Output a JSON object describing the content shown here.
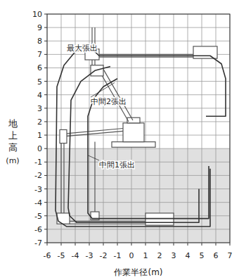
{
  "chart_data": {
    "type": "line",
    "x_label": "作業半径(m)",
    "y_label": "地上高(m)",
    "xlim": [
      -6,
      7
    ],
    "ylim": [
      -7,
      10
    ],
    "xticks": [
      -6,
      -5,
      -4,
      -3,
      -2,
      -1,
      0,
      1,
      2,
      3,
      4,
      5,
      6,
      7
    ],
    "yticks": [
      -7,
      -6,
      -5,
      -4,
      -3,
      -2,
      -1,
      0,
      1,
      2,
      3,
      4,
      5,
      6,
      7,
      8,
      9,
      10
    ],
    "grid": true,
    "regions": [
      {
        "y0": -7,
        "y1": 0,
        "color": "#e0e0e0"
      }
    ],
    "series": [
      {
        "color": "#333333",
        "x": [
          5.3,
          6.7,
          6.7,
          6.4,
          5.6,
          -2.3,
          -3.0,
          -4.0,
          -4.8,
          -5.3,
          -5.4,
          -5.2,
          -4.6,
          5.6,
          5.6
        ],
        "values": [
          2.4,
          2.4,
          5.2,
          6.3,
          6.9,
          6.9,
          7.6,
          7.2,
          6.2,
          4.6,
          -4.6,
          -5.4,
          -5.8,
          -5.8,
          -1.5
        ]
      },
      {
        "color": "#333333",
        "x": [
          -1.5,
          -2.6,
          -3.6,
          -4.3,
          -4.5,
          -4.4,
          -3.9,
          4.8,
          4.8
        ],
        "values": [
          6.1,
          5.8,
          5.0,
          3.6,
          -4.4,
          -5.0,
          -5.5,
          -5.5,
          -3.0
        ]
      },
      {
        "color": "#333333",
        "x": [
          -1.0,
          -2.0,
          -2.7,
          -3.1,
          -3.1,
          -2.8,
          5.5,
          5.5
        ],
        "values": [
          5.2,
          4.6,
          3.7,
          2.4,
          -4.8,
          -5.2,
          -5.2,
          -1.3
        ]
      }
    ],
    "annotations": [
      {
        "text": "最大張出",
        "x": -4.6,
        "y": 7.3,
        "point": [
          -3.3,
          7.6
        ]
      },
      {
        "text": "中間2張出",
        "x": -2.9,
        "y": 3.3,
        "point": [
          -1.2,
          4.9
        ]
      },
      {
        "text": "中間1張出",
        "x": -2.3,
        "y": -1.4,
        "point": [
          -3.1,
          -0.5
        ]
      }
    ]
  }
}
